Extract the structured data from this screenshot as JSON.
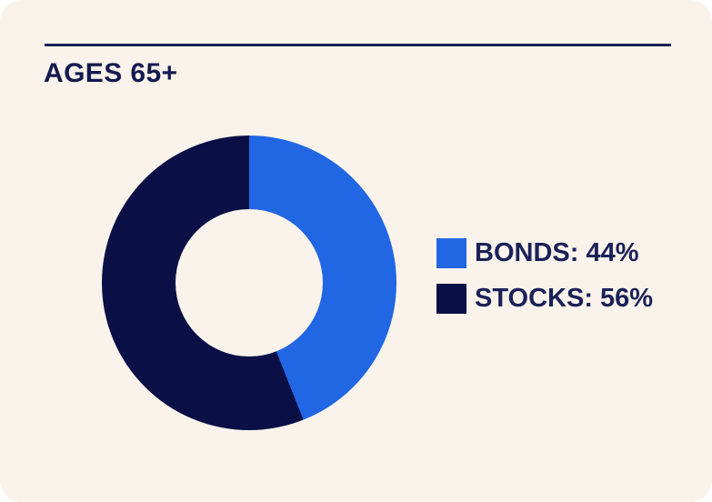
{
  "card": {
    "background_color": "#f9f3eb",
    "divider_color": "#1c2157",
    "title_color": "#151b4f"
  },
  "header": {
    "title": "AGES 65+"
  },
  "chart_data": {
    "type": "pie",
    "variant": "donut",
    "title": "AGES 65+",
    "unit": "%",
    "start_angle_deg": 0,
    "direction": "clockwise",
    "inner_radius_ratio": 0.5,
    "legend_position": "right",
    "series": [
      {
        "name": "BONDS",
        "value": 44,
        "color": "#2166e3",
        "label": "BONDS: 44%"
      },
      {
        "name": "STOCKS",
        "value": 56,
        "color": "#0a1046",
        "label": "STOCKS: 56%"
      }
    ]
  }
}
